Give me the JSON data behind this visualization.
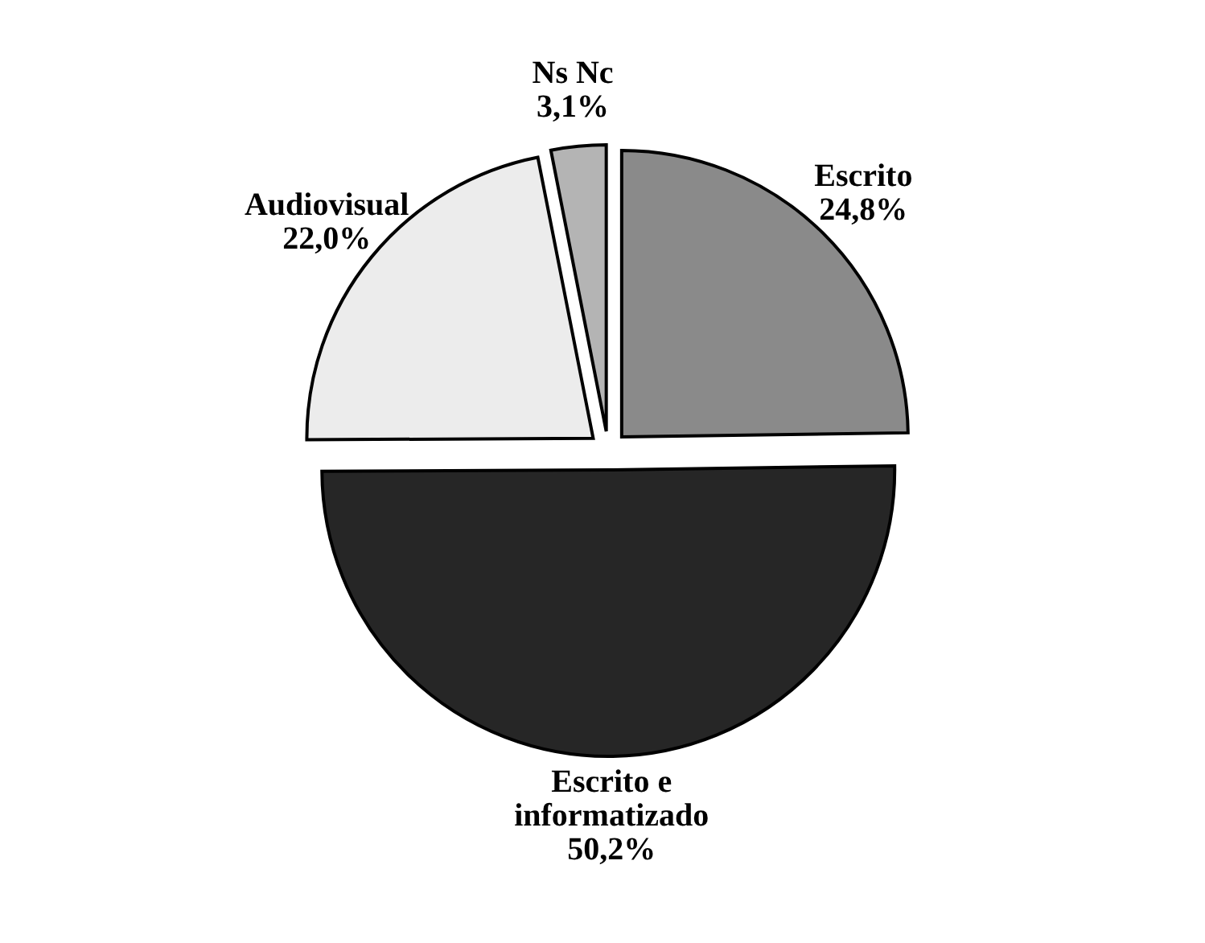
{
  "chart_data": {
    "type": "pie",
    "categories": [
      "Escrito",
      "Escrito e informatizado",
      "Audiovisual",
      "Ns Nc"
    ],
    "values": [
      24.8,
      50.2,
      22.0,
      3.1
    ],
    "colors": [
      "#8a8a8a",
      "#262626",
      "#ececec",
      "#b4b4b4"
    ],
    "value_labels": [
      "24,8%",
      "50,2%",
      "22,0%",
      "3,1%"
    ],
    "legend": false
  }
}
